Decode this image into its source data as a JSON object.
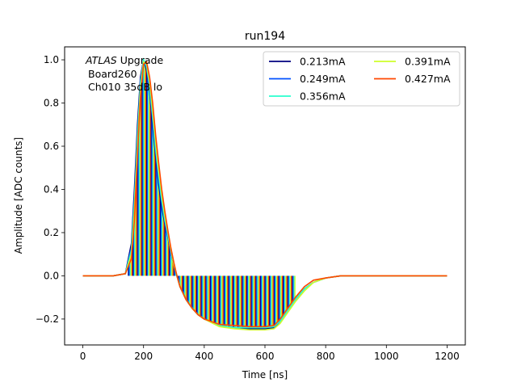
{
  "chart_data": {
    "type": "line",
    "title": "run194",
    "xlabel": "Time [ns]",
    "ylabel": "Amplitude [ADC counts]",
    "xlim": [
      -60,
      1260
    ],
    "ylim": [
      -0.32,
      1.06
    ],
    "xticks": [
      0,
      200,
      400,
      600,
      800,
      1000,
      1200
    ],
    "xtick_labels": [
      "0",
      "200",
      "400",
      "600",
      "800",
      "1000",
      "1200"
    ],
    "yticks": [
      -0.2,
      0.0,
      0.2,
      0.4,
      0.6,
      0.8,
      1.0
    ],
    "ytick_labels": [
      "−0.2",
      "0.0",
      "0.2",
      "0.4",
      "0.6",
      "0.8",
      "1.0"
    ],
    "grid": false,
    "legend_position": "top-right",
    "legend_columns": 2,
    "annotation": {
      "italic": "ATLAS",
      "text": " Upgrade",
      "lines": [
        "Board260",
        "Ch010 35dB lo"
      ]
    },
    "x": [
      0,
      100,
      140,
      160,
      170,
      180,
      190,
      200,
      210,
      220,
      230,
      240,
      250,
      260,
      270,
      280,
      290,
      300,
      310,
      320,
      340,
      360,
      380,
      400,
      450,
      500,
      550,
      600,
      630,
      650,
      670,
      700,
      730,
      760,
      800,
      850,
      900,
      1000,
      1100,
      1200
    ],
    "series": [
      {
        "name": "0.213mA",
        "color": "#00007f",
        "values": [
          0,
          0,
          0.01,
          0.15,
          0.4,
          0.7,
          0.92,
          1.0,
          0.95,
          0.85,
          0.7,
          0.55,
          0.42,
          0.32,
          0.24,
          0.18,
          0.11,
          0.05,
          0.0,
          -0.05,
          -0.11,
          -0.15,
          -0.18,
          -0.2,
          -0.23,
          -0.24,
          -0.245,
          -0.245,
          -0.24,
          -0.21,
          -0.17,
          -0.11,
          -0.06,
          -0.03,
          -0.01,
          0,
          0,
          0,
          0,
          0
        ]
      },
      {
        "name": "0.249mA",
        "color": "#0050ff",
        "values": [
          0,
          0,
          0.01,
          0.13,
          0.36,
          0.66,
          0.9,
          1.0,
          0.96,
          0.86,
          0.72,
          0.57,
          0.44,
          0.34,
          0.25,
          0.18,
          0.11,
          0.05,
          0.0,
          -0.05,
          -0.11,
          -0.15,
          -0.18,
          -0.2,
          -0.23,
          -0.24,
          -0.24,
          -0.24,
          -0.235,
          -0.21,
          -0.17,
          -0.11,
          -0.06,
          -0.03,
          -0.01,
          0,
          0,
          0,
          0,
          0
        ]
      },
      {
        "name": "0.356mA",
        "color": "#29ffce",
        "values": [
          0,
          0,
          0.01,
          0.12,
          0.34,
          0.64,
          0.89,
          1.0,
          0.97,
          0.88,
          0.74,
          0.59,
          0.46,
          0.35,
          0.26,
          0.19,
          0.12,
          0.05,
          0.0,
          -0.05,
          -0.11,
          -0.15,
          -0.18,
          -0.2,
          -0.23,
          -0.24,
          -0.24,
          -0.24,
          -0.235,
          -0.21,
          -0.17,
          -0.11,
          -0.06,
          -0.03,
          -0.01,
          0,
          0,
          0,
          0,
          0
        ]
      },
      {
        "name": "0.391mA",
        "color": "#ceff29",
        "values": [
          0,
          0,
          0.01,
          0.1,
          0.3,
          0.6,
          0.86,
          0.99,
          0.98,
          0.9,
          0.77,
          0.62,
          0.49,
          0.38,
          0.28,
          0.2,
          0.12,
          0.05,
          0.0,
          -0.05,
          -0.11,
          -0.15,
          -0.18,
          -0.2,
          -0.235,
          -0.245,
          -0.25,
          -0.25,
          -0.245,
          -0.22,
          -0.18,
          -0.12,
          -0.07,
          -0.03,
          -0.01,
          0,
          0,
          0,
          0,
          0
        ]
      },
      {
        "name": "0.427mA",
        "color": "#ff4800",
        "values": [
          0,
          0,
          0.01,
          0.08,
          0.26,
          0.56,
          0.83,
          0.98,
          0.99,
          0.92,
          0.8,
          0.65,
          0.52,
          0.4,
          0.3,
          0.21,
          0.13,
          0.06,
          0.0,
          -0.05,
          -0.11,
          -0.15,
          -0.18,
          -0.2,
          -0.225,
          -0.23,
          -0.235,
          -0.235,
          -0.23,
          -0.2,
          -0.16,
          -0.1,
          -0.05,
          -0.02,
          -0.01,
          0,
          0,
          0,
          0,
          0
        ]
      }
    ]
  }
}
